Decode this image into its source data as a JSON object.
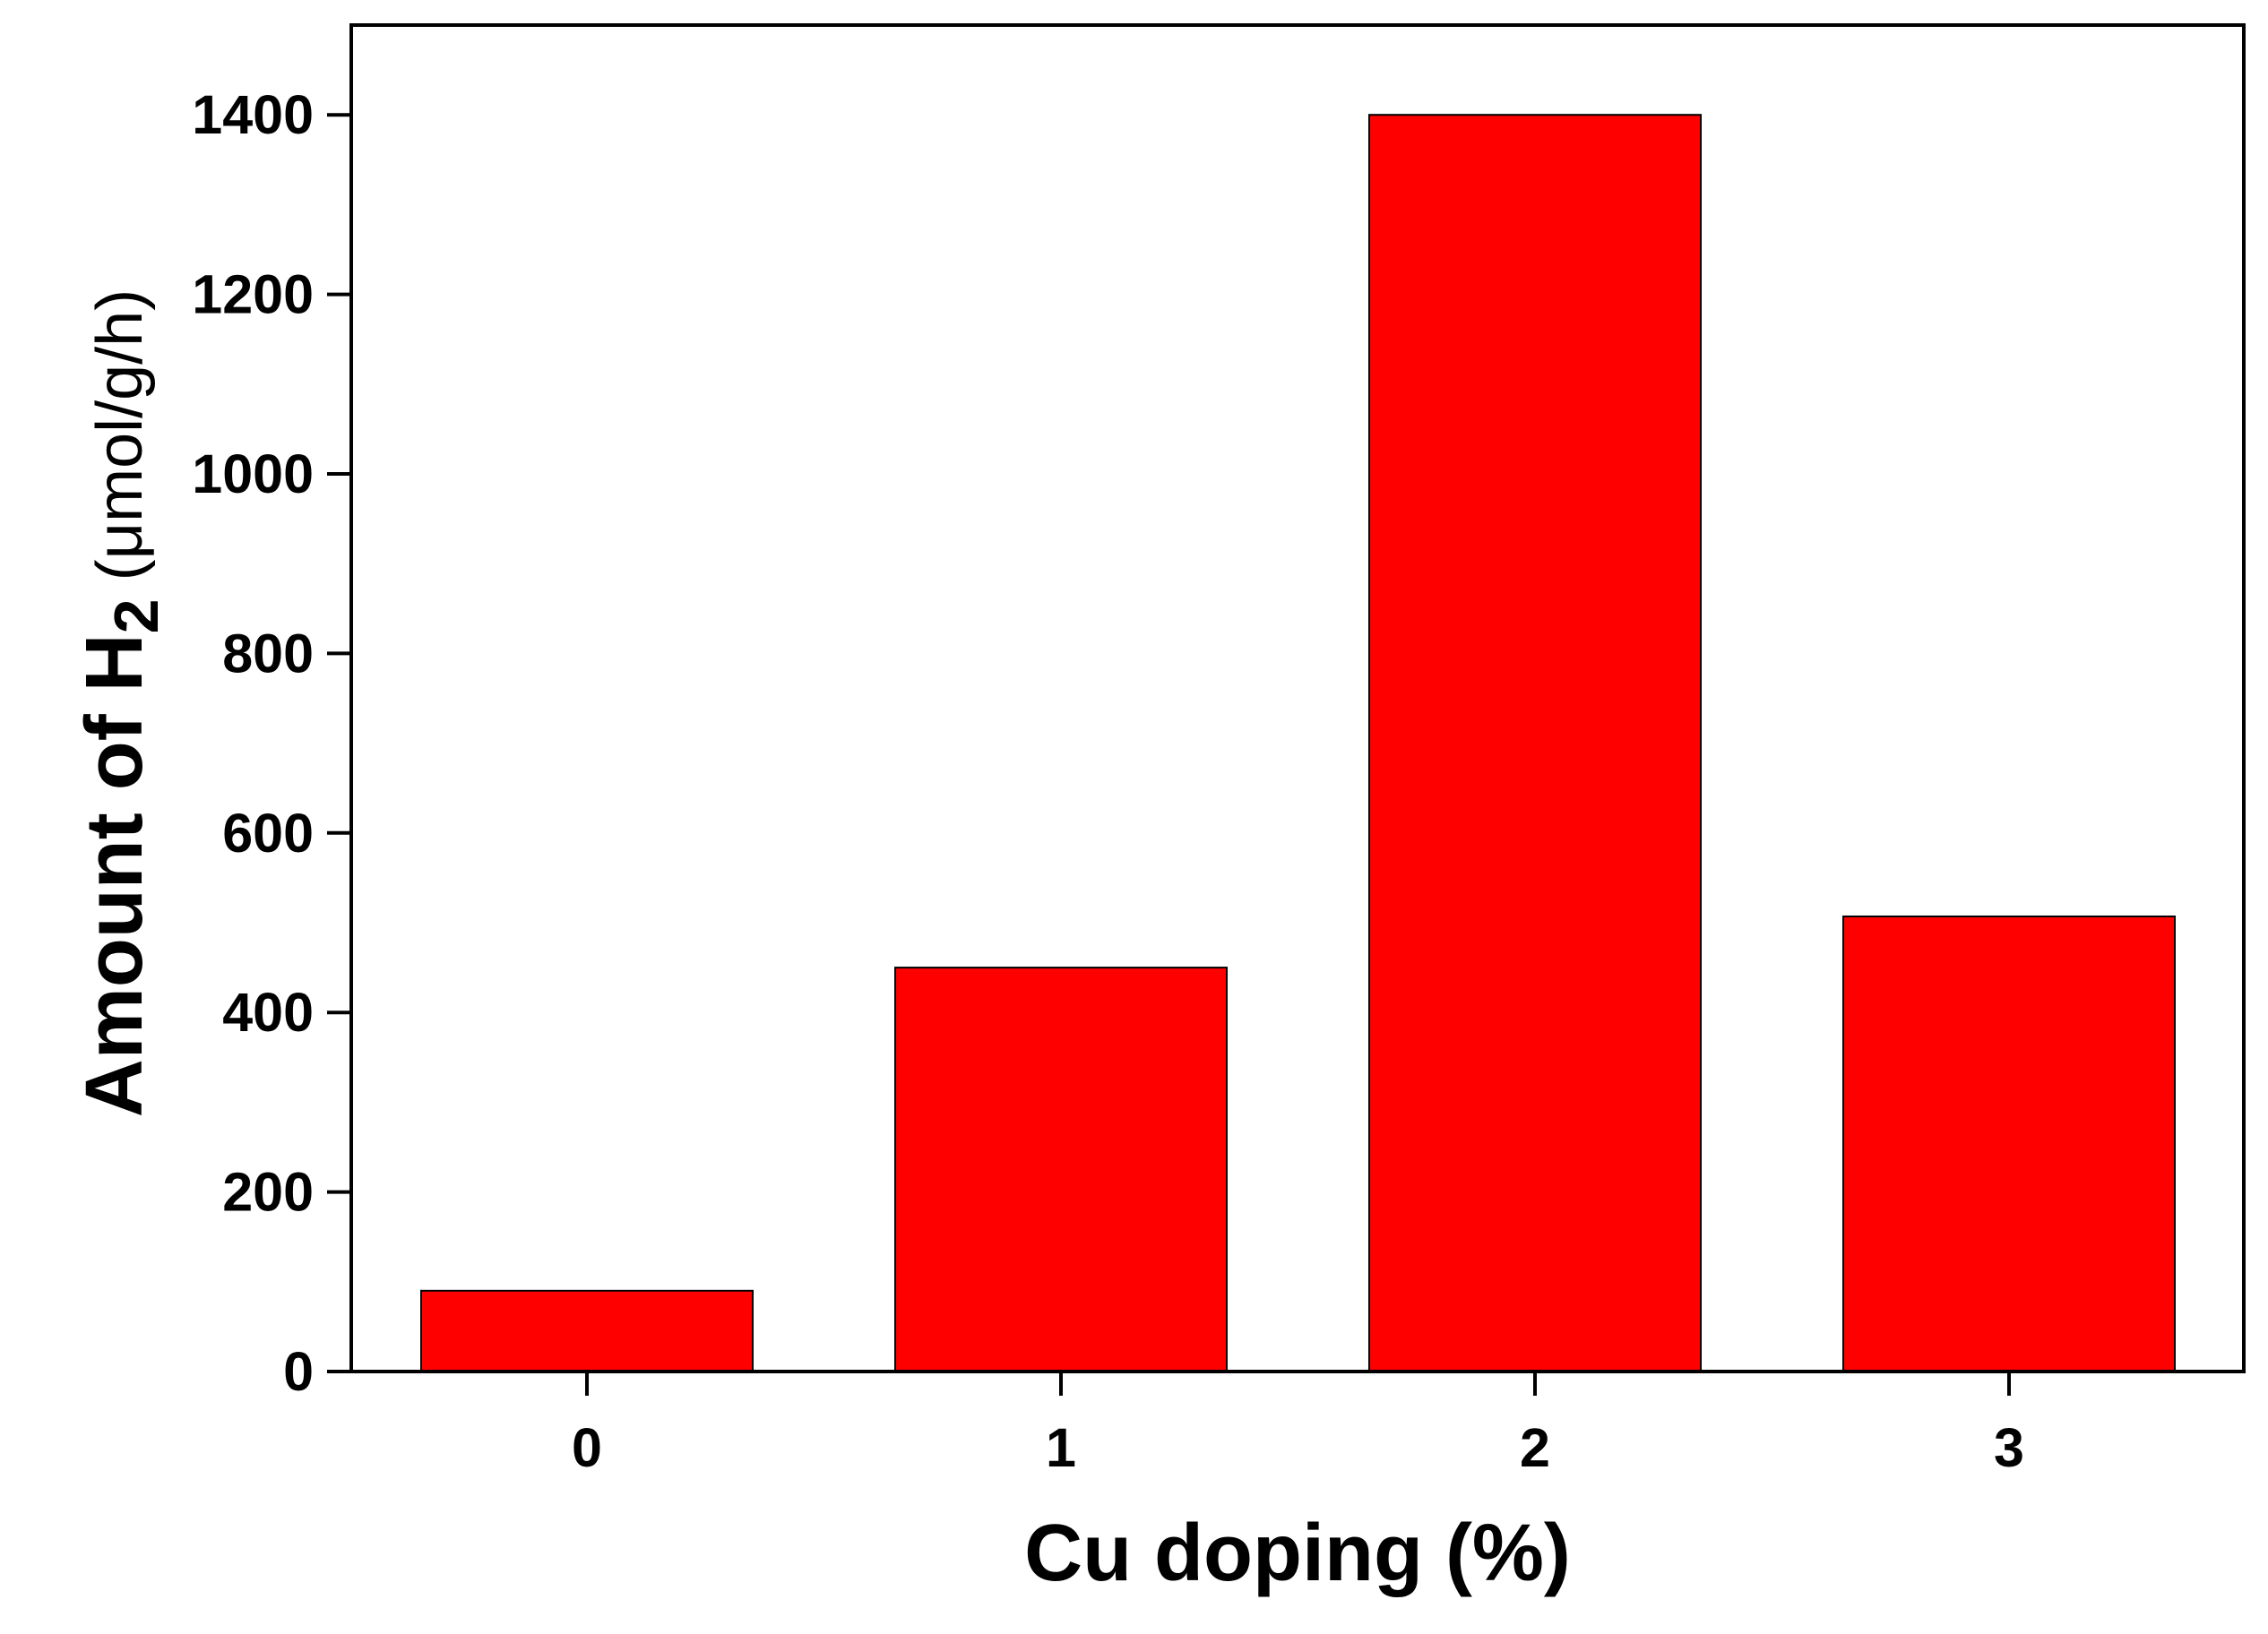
{
  "chart_data": {
    "type": "bar",
    "categories": [
      "0",
      "1",
      "2",
      "3"
    ],
    "values": [
      90,
      450,
      1400,
      507
    ],
    "xlabel": "Cu doping (%)",
    "ylabel": {
      "prefix": "Amount of H",
      "subscript": "2",
      "unit": " (μmol/g/h)"
    },
    "ylim": [
      0,
      1500
    ],
    "yticks": [
      "0",
      "200",
      "400",
      "600",
      "800",
      "1000",
      "1200",
      "1400"
    ],
    "grid": false,
    "legend": "none",
    "bar_color": "#ff0000",
    "edge_color": "#000000"
  }
}
